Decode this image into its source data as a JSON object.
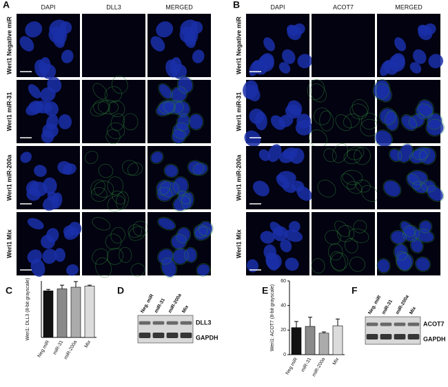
{
  "panels": [
    {
      "label": "A",
      "columns": [
        "DAPI",
        "DLL3",
        "MERGED"
      ],
      "rows": [
        "Weri1 Negative miR",
        "Weri1 miR-31",
        "Weri1 miR-200a",
        "Weri1 Mix"
      ]
    },
    {
      "label": "B",
      "columns": [
        "DAPI",
        "ACOT7",
        "MERGED"
      ],
      "rows": [
        "Weri1 Negative miR",
        "Weri1 miR-31",
        "Weri1 miR-200a",
        "Weri1 Mix"
      ]
    }
  ],
  "chart_data": [
    {
      "type": "bar",
      "panel_label": "C",
      "ylabel": "Weri1: DLL3 (8-bit grayscale)",
      "categories": [
        "Neg miR",
        "miR-31",
        "miR-200a",
        "Mix"
      ],
      "values": [
        16.5,
        17.2,
        17.8,
        18.2
      ],
      "errors": [
        0.5,
        1.3,
        2.0,
        0.3
      ],
      "colors": [
        "#111111",
        "#8a8a8a",
        "#ababab",
        "#dcdcdc"
      ],
      "ylim": [
        0,
        20
      ]
    },
    {
      "type": "bar",
      "panel_label": "E",
      "ylabel": "Weri1: ACOT7 (8-bit grayscale)",
      "categories": [
        "Neg miR",
        "miR-31",
        "miR-200a",
        "Mix"
      ],
      "values": [
        22,
        23,
        17.5,
        23.5
      ],
      "errors": [
        5,
        7.5,
        1,
        5.5
      ],
      "colors": [
        "#111111",
        "#8a8a8a",
        "#ababab",
        "#dcdcdc"
      ],
      "ylim": [
        0,
        60
      ],
      "yticks": [
        0,
        20,
        40,
        60
      ]
    }
  ],
  "blots": [
    {
      "label": "D",
      "lanes": [
        "Neg. miR",
        "miR-31",
        "miR-200a",
        "Mix"
      ],
      "bands": [
        "DLL3",
        "GAPDH"
      ]
    },
    {
      "label": "F",
      "lanes": [
        "Neg. miR",
        "miR-31",
        "miR-200a",
        "Mix"
      ],
      "bands": [
        "ACOT7",
        "GAPDH"
      ]
    }
  ]
}
